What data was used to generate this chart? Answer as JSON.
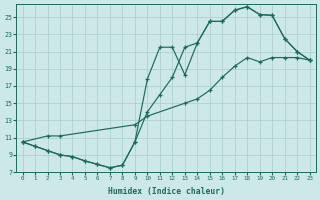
{
  "xlabel": "Humidex (Indice chaleur)",
  "bg_color": "#cce8e8",
  "grid_color": "#aacccc",
  "line_color": "#1a6b5a",
  "xlim": [
    -0.5,
    23.5
  ],
  "ylim": [
    7,
    26.5
  ],
  "yticks": [
    7,
    9,
    11,
    13,
    15,
    17,
    19,
    21,
    23,
    25
  ],
  "xticks": [
    0,
    1,
    2,
    3,
    4,
    5,
    6,
    7,
    8,
    9,
    10,
    11,
    12,
    13,
    14,
    15,
    16,
    17,
    18,
    19,
    20,
    21,
    22,
    23
  ],
  "curve1_x": [
    0,
    1,
    2,
    3,
    4,
    5,
    6,
    7,
    8,
    9,
    10,
    11,
    12,
    13,
    14,
    15,
    16,
    17,
    18,
    19,
    20,
    21,
    22,
    23
  ],
  "curve1_y": [
    10.5,
    10.0,
    9.5,
    9.0,
    8.8,
    8.3,
    7.9,
    7.5,
    7.8,
    10.5,
    17.8,
    21.5,
    21.5,
    18.3,
    22.0,
    24.5,
    24.5,
    25.8,
    26.2,
    25.3,
    25.2,
    22.5,
    21.0,
    20.0
  ],
  "curve2_x": [
    0,
    1,
    2,
    3,
    4,
    5,
    6,
    7,
    8,
    9,
    10,
    11,
    12,
    13,
    14,
    15,
    16,
    17,
    18,
    19,
    20,
    21,
    22,
    23
  ],
  "curve2_y": [
    10.5,
    10.0,
    9.5,
    9.0,
    8.8,
    8.3,
    7.9,
    7.5,
    7.8,
    10.5,
    14.0,
    16.0,
    18.0,
    21.5,
    22.0,
    24.5,
    24.5,
    25.8,
    26.2,
    25.3,
    25.2,
    22.5,
    21.0,
    20.0
  ],
  "curve3_x": [
    0,
    2,
    3,
    9,
    10,
    13,
    14,
    15,
    16,
    17,
    18,
    19,
    20,
    21,
    22,
    23
  ],
  "curve3_y": [
    10.5,
    11.2,
    11.2,
    12.5,
    13.5,
    15.0,
    15.5,
    16.5,
    18.0,
    19.3,
    20.3,
    19.8,
    20.3,
    20.3,
    20.3,
    20.0
  ]
}
